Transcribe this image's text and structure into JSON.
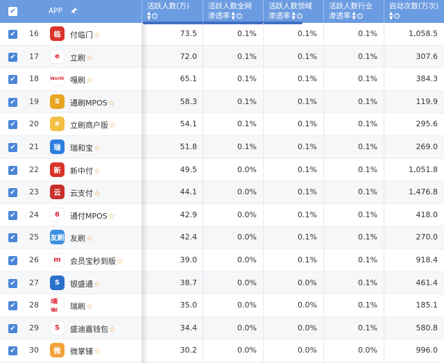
{
  "header": {
    "app_label": "APP",
    "pin_icon": "pin-icon",
    "columns": [
      {
        "line1": "活跃人数(万)",
        "line2": ""
      },
      {
        "line1": "活跃人数全网",
        "line2": "渗透率"
      },
      {
        "line1": "活跃人数领域",
        "line2": "渗透率"
      },
      {
        "line1": "活跃人数行业",
        "line2": "渗透率"
      },
      {
        "line1": "启动次数(万次)",
        "line2": ""
      }
    ]
  },
  "colors": {
    "header_bg": "#6b9be0",
    "checkbox": "#4a86d8",
    "star": "#e49b31"
  },
  "rows": [
    {
      "rank": "16",
      "name": "付临门",
      "icon": "fulinmen-icon",
      "icon_bg": "#d8342c",
      "icon_text": "临",
      "active": "73.5",
      "net": "0.1%",
      "domain": "0.1%",
      "industry": "0.1%",
      "launches": "1,058.5",
      "star": true
    },
    {
      "rank": "17",
      "name": "立刷",
      "icon": "lishua-icon",
      "icon_bg": "#ffffff",
      "icon_text": "e",
      "active": "72.0",
      "net": "0.1%",
      "domain": "0.1%",
      "industry": "0.1%",
      "launches": "307.6",
      "star": true
    },
    {
      "rank": "18",
      "name": "嘎刷",
      "icon": "gashua-icon",
      "icon_bg": "#ffffff",
      "icon_text": "Worth",
      "active": "65.1",
      "net": "0.1%",
      "domain": "0.1%",
      "industry": "0.1%",
      "launches": "384.3",
      "star": true
    },
    {
      "rank": "19",
      "name": "通刷MPOS",
      "icon": "tongshua-icon",
      "icon_bg": "#e8a522",
      "icon_text": "S",
      "active": "58.3",
      "net": "0.1%",
      "domain": "0.1%",
      "industry": "0.1%",
      "launches": "119.9",
      "star": true
    },
    {
      "rank": "20",
      "name": "立刷商户版",
      "icon": "lishua-merchant-icon",
      "icon_bg": "#f3c044",
      "icon_text": "e",
      "active": "54.1",
      "net": "0.1%",
      "domain": "0.1%",
      "industry": "0.1%",
      "launches": "295.6",
      "star": true
    },
    {
      "rank": "21",
      "name": "瑞和宝",
      "icon": "ruihebao-icon",
      "icon_bg": "#2c7fe0",
      "icon_text": "瑞",
      "active": "51.8",
      "net": "0.1%",
      "domain": "0.1%",
      "industry": "0.1%",
      "launches": "269.0",
      "star": true
    },
    {
      "rank": "22",
      "name": "新中付",
      "icon": "xinzhongfu-icon",
      "icon_bg": "#d9342b",
      "icon_text": "新",
      "active": "49.5",
      "net": "0.0%",
      "domain": "0.1%",
      "industry": "0.1%",
      "launches": "1,051.8",
      "star": true
    },
    {
      "rank": "23",
      "name": "云支付",
      "icon": "yunzhifu-icon",
      "icon_bg": "#c9302c",
      "icon_text": "云",
      "active": "44.1",
      "net": "0.0%",
      "domain": "0.1%",
      "industry": "0.1%",
      "launches": "1,476.8",
      "star": true
    },
    {
      "rank": "24",
      "name": "通付MPOS",
      "icon": "tongfu-icon",
      "icon_bg": "#ffffff",
      "icon_text": "6",
      "active": "42.9",
      "net": "0.0%",
      "domain": "0.1%",
      "industry": "0.1%",
      "launches": "418.0",
      "star": true
    },
    {
      "rank": "25",
      "name": "友刷",
      "icon": "youshua-icon",
      "icon_bg": "#3a8fe0",
      "icon_text": "友刷",
      "active": "42.4",
      "net": "0.0%",
      "domain": "0.1%",
      "industry": "0.1%",
      "launches": "270.0",
      "star": true
    },
    {
      "rank": "26",
      "name": "会员宝秒到版",
      "icon": "huiyuanbao-icon",
      "icon_bg": "#ffffff",
      "icon_text": "m",
      "active": "39.0",
      "net": "0.0%",
      "domain": "0.1%",
      "industry": "0.1%",
      "launches": "918.4",
      "star": true
    },
    {
      "rank": "27",
      "name": "银盛通",
      "icon": "yinshengtong-icon",
      "icon_bg": "#2a6fc9",
      "icon_text": "S",
      "active": "38.7",
      "net": "0.0%",
      "domain": "0.0%",
      "industry": "0.1%",
      "launches": "461.4",
      "star": true
    },
    {
      "rank": "28",
      "name": "瑞刷",
      "icon": "ruishua-icon",
      "icon_bg": "#ffffff",
      "icon_text": "瑞刷",
      "active": "35.0",
      "net": "0.0%",
      "domain": "0.0%",
      "industry": "0.1%",
      "launches": "185.1",
      "star": true
    },
    {
      "rank": "29",
      "name": "盛迪嘉钱包",
      "icon": "shengdijia-icon",
      "icon_bg": "#ffffff",
      "icon_text": "S",
      "active": "34.4",
      "net": "0.0%",
      "domain": "0.0%",
      "industry": "0.1%",
      "launches": "580.8",
      "star": true
    },
    {
      "rank": "30",
      "name": "微掌铺",
      "icon": "weizhangpu-icon",
      "icon_bg": "#f3a23c",
      "icon_text": "微",
      "active": "30.2",
      "net": "0.0%",
      "domain": "0.0%",
      "industry": "0.0%",
      "launches": "996.0",
      "star": true
    }
  ]
}
